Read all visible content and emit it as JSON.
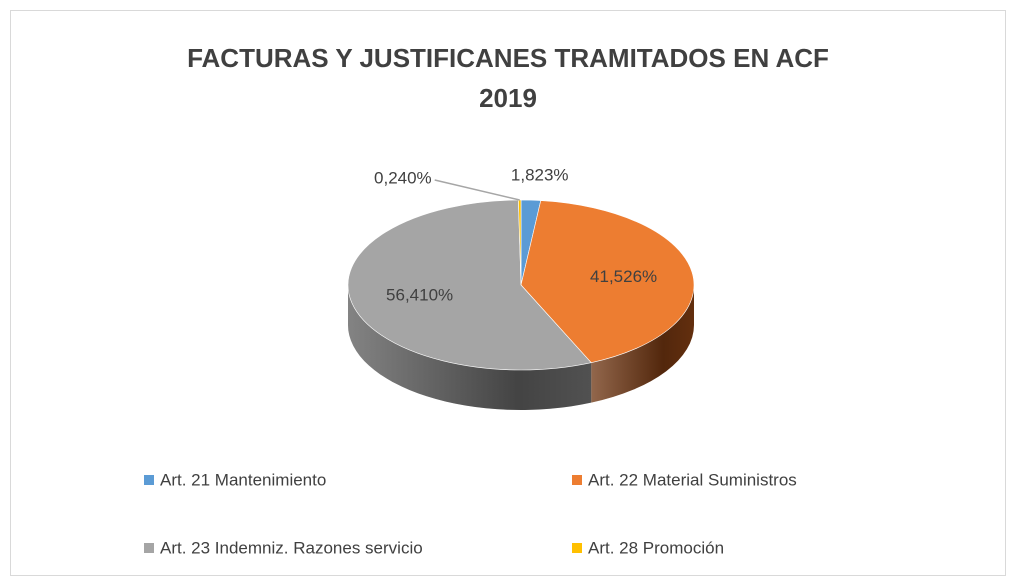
{
  "chart_data": {
    "type": "pie",
    "title": "FACTURAS Y JUSTIFICANES TRAMITADOS EN ACF 2019",
    "categories": [
      "Art. 21 Mantenimiento",
      "Art. 22 Material Suministros",
      "Art. 23 Indemniz. Razones servicio",
      "Art. 28 Promoción"
    ],
    "values": [
      1.823,
      41.526,
      56.41,
      0.24
    ],
    "value_labels": [
      "1,823%",
      "41,526%",
      "56,410%",
      "0,240%"
    ],
    "colors": [
      "#5b9bd5",
      "#ed7d31",
      "#a5a5a5",
      "#ffc000"
    ],
    "side_colors": [
      "#2e6da4",
      "#6e3410",
      "#5a5a5a",
      "#b08400"
    ],
    "legend": "bottom"
  }
}
